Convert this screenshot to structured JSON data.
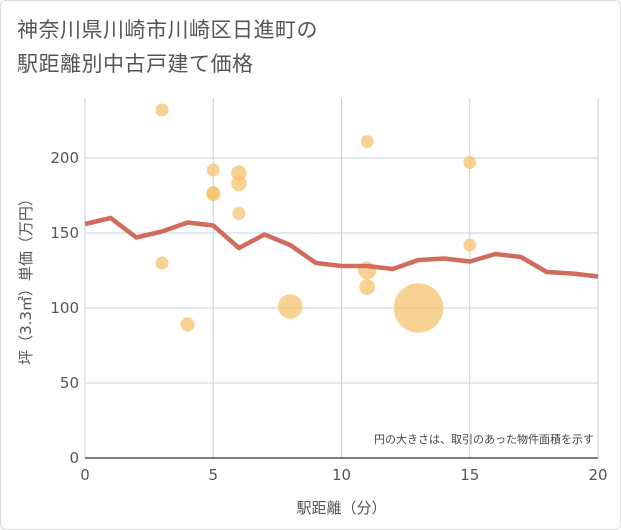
{
  "chart_data": {
    "type": "scatter",
    "title_line1": "神奈川県川崎市川崎区日進町の",
    "title_line2": "駅距離別中古戸建て価格",
    "xlabel": "駅距離（分）",
    "ylabel": "坪（3.3㎡）単価（万円）",
    "xlim": [
      0,
      20
    ],
    "ylim": [
      0,
      240
    ],
    "xticks": [
      0,
      5,
      10,
      15,
      20
    ],
    "yticks": [
      0,
      50,
      100,
      150,
      200
    ],
    "annotation": "円の大きさは、取引のあった物件面積を示す",
    "colors": {
      "points": "#f5c06a",
      "line": "#d06b5e",
      "grid": "#c6d3de",
      "background": "#ffffff"
    },
    "points": [
      {
        "x": 3,
        "y": 232,
        "size": 1
      },
      {
        "x": 3,
        "y": 130,
        "size": 1
      },
      {
        "x": 4,
        "y": 89,
        "size": 1.1
      },
      {
        "x": 5,
        "y": 192,
        "size": 1
      },
      {
        "x": 5,
        "y": 176,
        "size": 1.1
      },
      {
        "x": 5,
        "y": 177,
        "size": 1
      },
      {
        "x": 6,
        "y": 190,
        "size": 1.2
      },
      {
        "x": 6,
        "y": 183,
        "size": 1.2
      },
      {
        "x": 6,
        "y": 163,
        "size": 1
      },
      {
        "x": 8,
        "y": 101,
        "size": 1.9
      },
      {
        "x": 11,
        "y": 211,
        "size": 1
      },
      {
        "x": 11,
        "y": 125,
        "size": 1.4
      },
      {
        "x": 11,
        "y": 114,
        "size": 1.2
      },
      {
        "x": 13,
        "y": 100,
        "size": 3.8
      },
      {
        "x": 15,
        "y": 197,
        "size": 1
      },
      {
        "x": 15,
        "y": 142,
        "size": 1
      }
    ],
    "line": {
      "x": [
        0,
        1,
        2,
        3,
        4,
        5,
        6,
        7,
        8,
        9,
        10,
        11,
        12,
        13,
        14,
        15,
        16,
        17,
        18,
        19,
        20
      ],
      "y": [
        156,
        160,
        147,
        151,
        157,
        155,
        140,
        149,
        142,
        130,
        128,
        128,
        126,
        132,
        133,
        131,
        136,
        134,
        124,
        123,
        121
      ]
    }
  }
}
